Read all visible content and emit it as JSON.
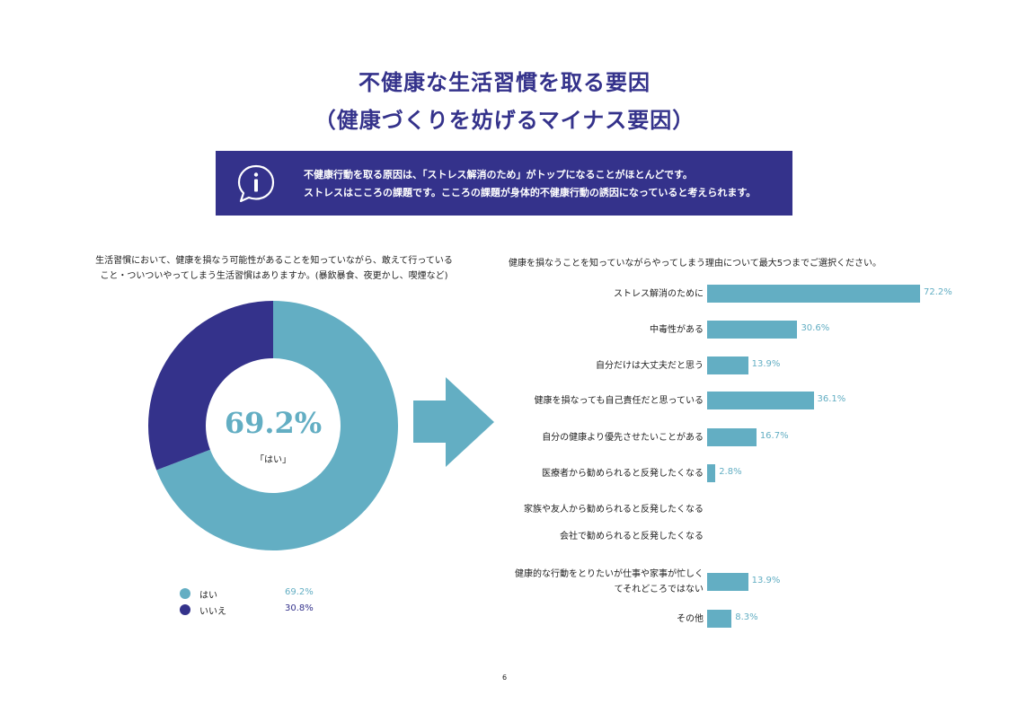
{
  "title_line1": "不健康な生活習慣を取る要因",
  "title_line2": "（健康づくりを妨げるマイナス要因）",
  "info": {
    "icon": "info-speech-bubble-icon",
    "line1": "不健康行動を取る原因は、「ストレス解消のため」がトップになることがほとんどです。",
    "line2": "ストレスはこころの課題です。こころの課題が身体的不健康行動の誘因になっていると考えられます。"
  },
  "left_question": {
    "line1": "生活習慣において、健康を損なう可能性があることを知っていながら、敢えて行っている",
    "line2": "こと・ついついやってしまう生活習慣はありますか。(暴飲暴食、夜更かし、喫煙など)"
  },
  "donut": {
    "center_value": "69.2%",
    "center_label": "「はい」"
  },
  "legend": [
    {
      "label": "はい",
      "value": "69.2%",
      "color": "#63aec3"
    },
    {
      "label": "いいえ",
      "value": "30.8%",
      "color": "#34328b"
    }
  ],
  "arrow_icon": "right-arrow-icon",
  "right_question": "健康を損なうことを知っていながらやってしまう理由について最大5つまでご選択ください。",
  "page_number": "6",
  "chart_data": [
    {
      "type": "pie",
      "categories": [
        "はい",
        "いいえ"
      ],
      "values": [
        69.2,
        30.8
      ],
      "colors": [
        "#63aec3",
        "#34328b"
      ],
      "donut": true,
      "legend_position": "bottom-left"
    },
    {
      "type": "bar",
      "orientation": "horizontal",
      "categories": [
        "ストレス解消のために",
        "中毒性がある",
        "自分だけは大丈夫だと思う",
        "健康を損なっても自己責任だと思っている",
        "自分の健康より優先させたいことがある",
        "医療者から勧められると反発したくなる",
        "家族や友人から勧められると反発したくなる",
        "会社で勧められると反発したくなる",
        "健康的な行動をとりたいが仕事や家事が忙しく\nてそれどころではない",
        "その他"
      ],
      "values": [
        72.2,
        30.6,
        13.9,
        36.1,
        16.7,
        2.8,
        0,
        0,
        13.9,
        8.3
      ],
      "value_labels": [
        "72.2%",
        "30.6%",
        "13.9%",
        "36.1%",
        "16.7%",
        "2.8%",
        "",
        "",
        "13.9%",
        "8.3%"
      ],
      "color": "#63aec3"
    }
  ]
}
